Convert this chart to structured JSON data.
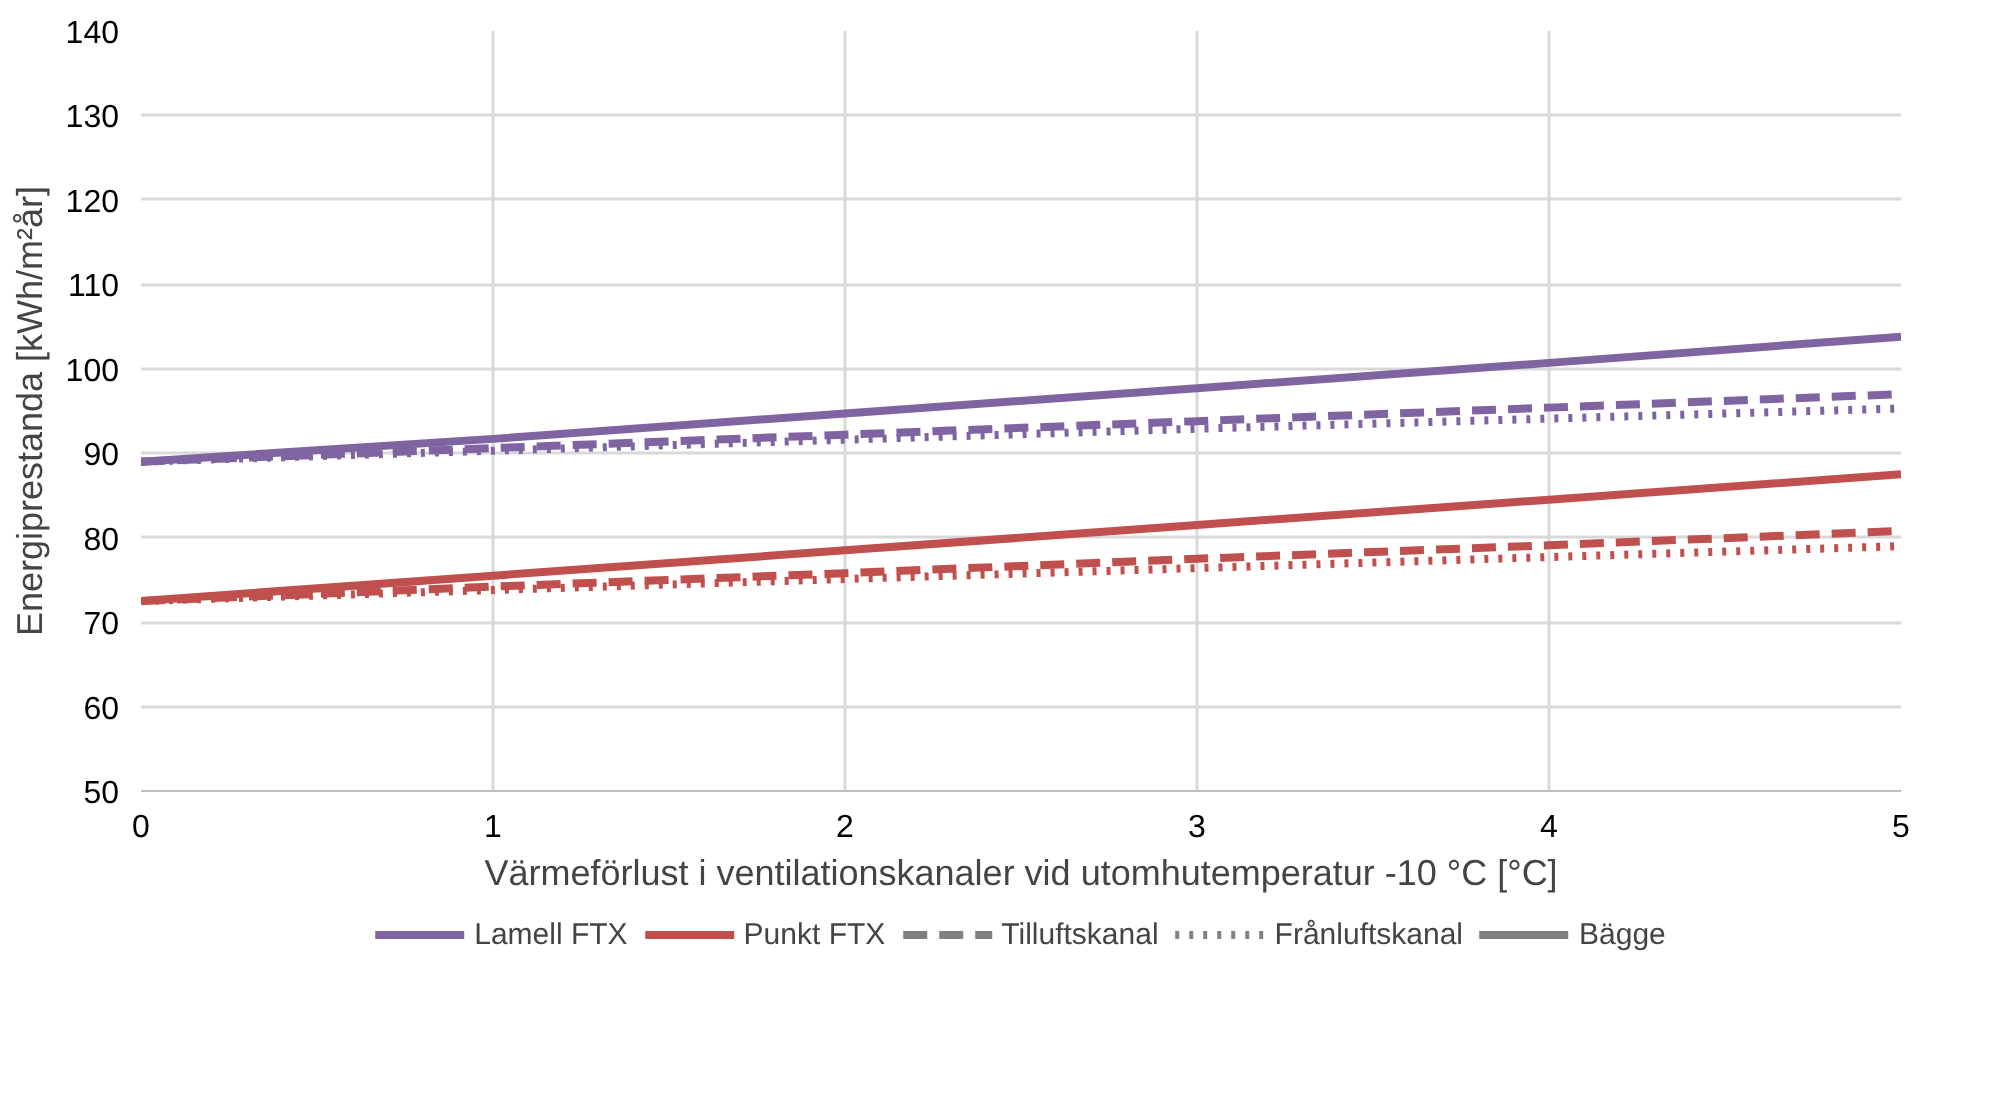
{
  "chart_data": {
    "type": "line",
    "xlabel": "Värmeförlust i ventilationskanaler vid utomhutemperatur -10 °C [°C]",
    "ylabel": "Energiprestanda [kWh/m²år]",
    "x": [
      0,
      1,
      2,
      3,
      4,
      5
    ],
    "xlim": [
      0,
      5
    ],
    "xticks": [
      0,
      1,
      2,
      3,
      4,
      5
    ],
    "ylim": [
      50,
      140
    ],
    "yticks": [
      50,
      60,
      70,
      80,
      90,
      100,
      110,
      120,
      130,
      140
    ],
    "grid": true,
    "legend": "bottom",
    "marker": "none",
    "series": [
      {
        "name": "Lamell FTX",
        "color": "#8064a2",
        "line_style": "solid",
        "values": [
          89,
          91.7,
          94.7,
          97.7,
          100.7,
          103.8
        ]
      },
      {
        "color": "#8064a2",
        "line_style": "dashed",
        "values": [
          89,
          90.6,
          92.2,
          93.8,
          95.4,
          97
        ]
      },
      {
        "color": "#8064a2",
        "line_style": "dotted",
        "values": [
          89,
          90.3,
          91.6,
          92.9,
          94.1,
          95.3
        ]
      },
      {
        "name": "Punkt FTX",
        "color": "#c0504d",
        "line_style": "solid",
        "values": [
          72.5,
          75.5,
          78.5,
          81.5,
          84.5,
          87.5
        ]
      },
      {
        "color": "#c0504d",
        "line_style": "dashed",
        "values": [
          72.5,
          74.2,
          75.8,
          77.5,
          79.1,
          80.8
        ]
      },
      {
        "color": "#c0504d",
        "line_style": "dotted",
        "values": [
          72.5,
          73.8,
          75.1,
          76.4,
          77.7,
          79
        ]
      },
      {
        "name": "Tilluftskanal",
        "color": "#808080",
        "line_style": "dashed",
        "values": [
          null,
          null,
          null,
          null,
          null,
          null
        ]
      },
      {
        "name": "Frånluftskanal",
        "color": "#808080",
        "line_style": "dotted",
        "values": [
          null,
          null,
          null,
          null,
          null,
          null
        ]
      },
      {
        "name": "Bägge",
        "color": "#808080",
        "line_style": "solid",
        "values": [
          null,
          null,
          null,
          null,
          null,
          null
        ]
      }
    ]
  }
}
